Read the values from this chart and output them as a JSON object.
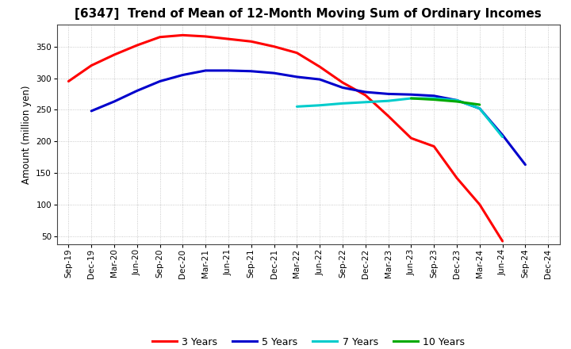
{
  "title": "[6347]  Trend of Mean of 12-Month Moving Sum of Ordinary Incomes",
  "ylabel": "Amount (million yen)",
  "background_color": "#ffffff",
  "grid_color": "#aaaaaa",
  "ylim": [
    37,
    385
  ],
  "yticks": [
    50,
    100,
    150,
    200,
    250,
    300,
    350
  ],
  "series": {
    "3 Years": {
      "color": "#ff0000",
      "x_labels": [
        "Sep-19",
        "Dec-19",
        "Mar-20",
        "Jun-20",
        "Sep-20",
        "Dec-20",
        "Mar-21",
        "Jun-21",
        "Sep-21",
        "Dec-21",
        "Mar-22",
        "Jun-22",
        "Sep-22",
        "Dec-22",
        "Mar-23",
        "Jun-23",
        "Sep-23",
        "Dec-23",
        "Mar-24",
        "Jun-24",
        "Sep-24"
      ],
      "values": [
        295,
        320,
        337,
        352,
        365,
        368,
        366,
        362,
        358,
        350,
        340,
        318,
        293,
        273,
        240,
        205,
        192,
        142,
        100,
        42,
        null
      ]
    },
    "5 Years": {
      "color": "#0000cc",
      "x_labels": [
        "Dec-19",
        "Mar-20",
        "Jun-20",
        "Sep-20",
        "Dec-20",
        "Mar-21",
        "Jun-21",
        "Sep-21",
        "Dec-21",
        "Mar-22",
        "Jun-22",
        "Sep-22",
        "Dec-22",
        "Mar-23",
        "Jun-23",
        "Sep-23",
        "Dec-23",
        "Mar-24",
        "Jun-24",
        "Sep-24"
      ],
      "values": [
        248,
        263,
        280,
        295,
        305,
        312,
        312,
        311,
        308,
        302,
        298,
        285,
        278,
        275,
        274,
        272,
        265,
        252,
        210,
        163
      ]
    },
    "7 Years": {
      "color": "#00cccc",
      "x_labels": [
        "Mar-22",
        "Jun-22",
        "Sep-22",
        "Dec-22",
        "Mar-23",
        "Jun-23",
        "Sep-23",
        "Dec-23",
        "Mar-24",
        "Jun-24"
      ],
      "values": [
        255,
        257,
        260,
        262,
        264,
        268,
        268,
        265,
        252,
        207
      ]
    },
    "10 Years": {
      "color": "#00aa00",
      "x_labels": [
        "Jun-23",
        "Sep-23",
        "Dec-23",
        "Mar-24"
      ],
      "values": [
        268,
        266,
        263,
        258
      ]
    }
  },
  "all_x_labels": [
    "Sep-19",
    "Dec-19",
    "Mar-20",
    "Jun-20",
    "Sep-20",
    "Dec-20",
    "Mar-21",
    "Jun-21",
    "Sep-21",
    "Dec-21",
    "Mar-22",
    "Jun-22",
    "Sep-22",
    "Dec-22",
    "Mar-23",
    "Jun-23",
    "Sep-23",
    "Dec-23",
    "Mar-24",
    "Jun-24",
    "Sep-24",
    "Dec-24"
  ],
  "legend": [
    {
      "label": "3 Years",
      "color": "#ff0000"
    },
    {
      "label": "5 Years",
      "color": "#0000cc"
    },
    {
      "label": "7 Years",
      "color": "#00cccc"
    },
    {
      "label": "10 Years",
      "color": "#00aa00"
    }
  ],
  "figsize": [
    7.2,
    4.4
  ],
  "dpi": 100,
  "title_fontsize": 11,
  "axis_label_fontsize": 8.5,
  "tick_fontsize": 7.5,
  "legend_fontsize": 9,
  "linewidth": 2.2
}
